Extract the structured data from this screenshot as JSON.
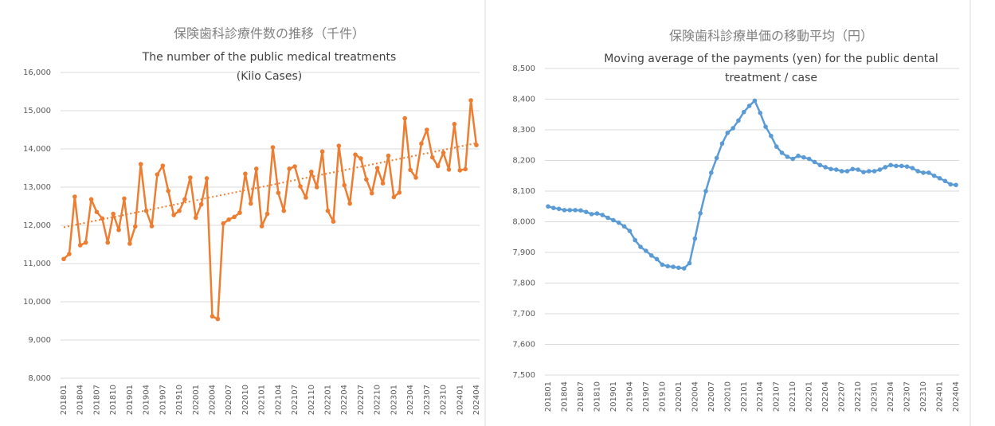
{
  "chart_data": [
    {
      "type": "line",
      "title": "保険歯科診療件数の推移（千件）",
      "subtitle": [
        "The number of the public medical treatments",
        "(Kilo Cases)"
      ],
      "categories": [
        "201801",
        null,
        null,
        "201804",
        null,
        null,
        "201807",
        null,
        null,
        "201810",
        null,
        null,
        "201901",
        null,
        null,
        "201904",
        null,
        null,
        "201907",
        null,
        null,
        "201910",
        null,
        null,
        "202001",
        null,
        null,
        "202004",
        null,
        null,
        "202007",
        null,
        null,
        "202010",
        null,
        null,
        "202101",
        null,
        null,
        "202104",
        null,
        null,
        "202107",
        null,
        null,
        "202110",
        null,
        null,
        "202201",
        null,
        null,
        "202204",
        null,
        null,
        "202207",
        null,
        null,
        "202210",
        null,
        null,
        "202301",
        null,
        null,
        "202304",
        null,
        null,
        "202307",
        null,
        null,
        "202310",
        null,
        null,
        "202401",
        null,
        null,
        "202404"
      ],
      "series": [
        {
          "color": "#ed7d31",
          "values": [
            11120,
            11250,
            12750,
            11480,
            11550,
            12680,
            12350,
            12180,
            11550,
            12300,
            11880,
            12700,
            11520,
            11970,
            13600,
            12380,
            11980,
            13330,
            13560,
            12900,
            12270,
            12380,
            12680,
            13250,
            12200,
            12550,
            13230,
            9620,
            9550,
            12050,
            12150,
            12220,
            12330,
            13350,
            12570,
            13480,
            11980,
            12300,
            14040,
            12850,
            12380,
            13480,
            13540,
            13020,
            12730,
            13400,
            13000,
            13930,
            12380,
            12100,
            14080,
            13050,
            12570,
            13850,
            13750,
            13200,
            12840,
            13500,
            13100,
            13820,
            12740,
            12860,
            14800,
            13450,
            13250,
            14140,
            14500,
            13780,
            13550,
            13900,
            13460,
            14650,
            13440,
            13470,
            15270,
            14100
          ]
        }
      ],
      "trendline": {
        "color": "#ed7d31",
        "values": [
          11950,
          14150
        ]
      },
      "ylim": [
        8000,
        16000
      ],
      "yticks": [
        {
          "value": 8000,
          "label": "8,000"
        },
        {
          "value": 9000,
          "label": "9,000"
        },
        {
          "value": 10000,
          "label": "10,000"
        },
        {
          "value": 11000,
          "label": "11,000"
        },
        {
          "value": 12000,
          "label": "12,000"
        },
        {
          "value": 13000,
          "label": "13,000"
        },
        {
          "value": 14000,
          "label": "14,000"
        },
        {
          "value": 15000,
          "label": "15,000"
        },
        {
          "value": 16000,
          "label": "16,000"
        }
      ],
      "grid": true
    },
    {
      "type": "line",
      "title": "保険歯科診療単価の移動平均（円）",
      "subtitle": [
        "Moving average of the payments (yen) for the public dental",
        "treatment / case"
      ],
      "categories": [
        "201801",
        null,
        null,
        "201804",
        null,
        null,
        "201807",
        null,
        null,
        "201810",
        null,
        null,
        "201901",
        null,
        null,
        "201904",
        null,
        null,
        "201907",
        null,
        null,
        "201910",
        null,
        null,
        "202001",
        null,
        null,
        "202004",
        null,
        null,
        "202007",
        null,
        null,
        "202010",
        null,
        null,
        "202101",
        null,
        null,
        "202104",
        null,
        null,
        "202107",
        null,
        null,
        "202110",
        null,
        null,
        "202201",
        null,
        null,
        "202204",
        null,
        null,
        "202207",
        null,
        null,
        "202210",
        null,
        null,
        "202301",
        null,
        null,
        "202304",
        null,
        null,
        "202307",
        null,
        null,
        "202310",
        null,
        null,
        "202401",
        null,
        null,
        "202404"
      ],
      "series": [
        {
          "color": "#5b9bd5",
          "values": [
            8050,
            8045,
            8042,
            8038,
            8038,
            8038,
            8037,
            8032,
            8025,
            8027,
            8022,
            8013,
            8005,
            7997,
            7985,
            7970,
            7940,
            7918,
            7905,
            7890,
            7878,
            7860,
            7855,
            7853,
            7850,
            7848,
            7865,
            7945,
            8028,
            8100,
            8160,
            8208,
            8255,
            8290,
            8305,
            8330,
            8358,
            8378,
            8395,
            8355,
            8310,
            8280,
            8245,
            8225,
            8212,
            8205,
            8215,
            8210,
            8205,
            8195,
            8185,
            8178,
            8172,
            8170,
            8165,
            8165,
            8172,
            8170,
            8162,
            8165,
            8165,
            8170,
            8178,
            8185,
            8182,
            8182,
            8180,
            8175,
            8165,
            8160,
            8160,
            8150,
            8142,
            8133,
            8122,
            8120
          ]
        }
      ],
      "ylim": [
        7500,
        8500
      ],
      "yticks": [
        {
          "value": 7500,
          "label": "7,500"
        },
        {
          "value": 7600,
          "label": "7,600"
        },
        {
          "value": 7700,
          "label": "7,700"
        },
        {
          "value": 7800,
          "label": "7,800"
        },
        {
          "value": 7900,
          "label": "7,900"
        },
        {
          "value": 8000,
          "label": "8,000"
        },
        {
          "value": 8100,
          "label": "8,100"
        },
        {
          "value": 8200,
          "label": "8,200"
        },
        {
          "value": 8300,
          "label": "8,300"
        },
        {
          "value": 8400,
          "label": "8,400"
        },
        {
          "value": 8500,
          "label": "8,500"
        }
      ],
      "grid": true
    }
  ]
}
